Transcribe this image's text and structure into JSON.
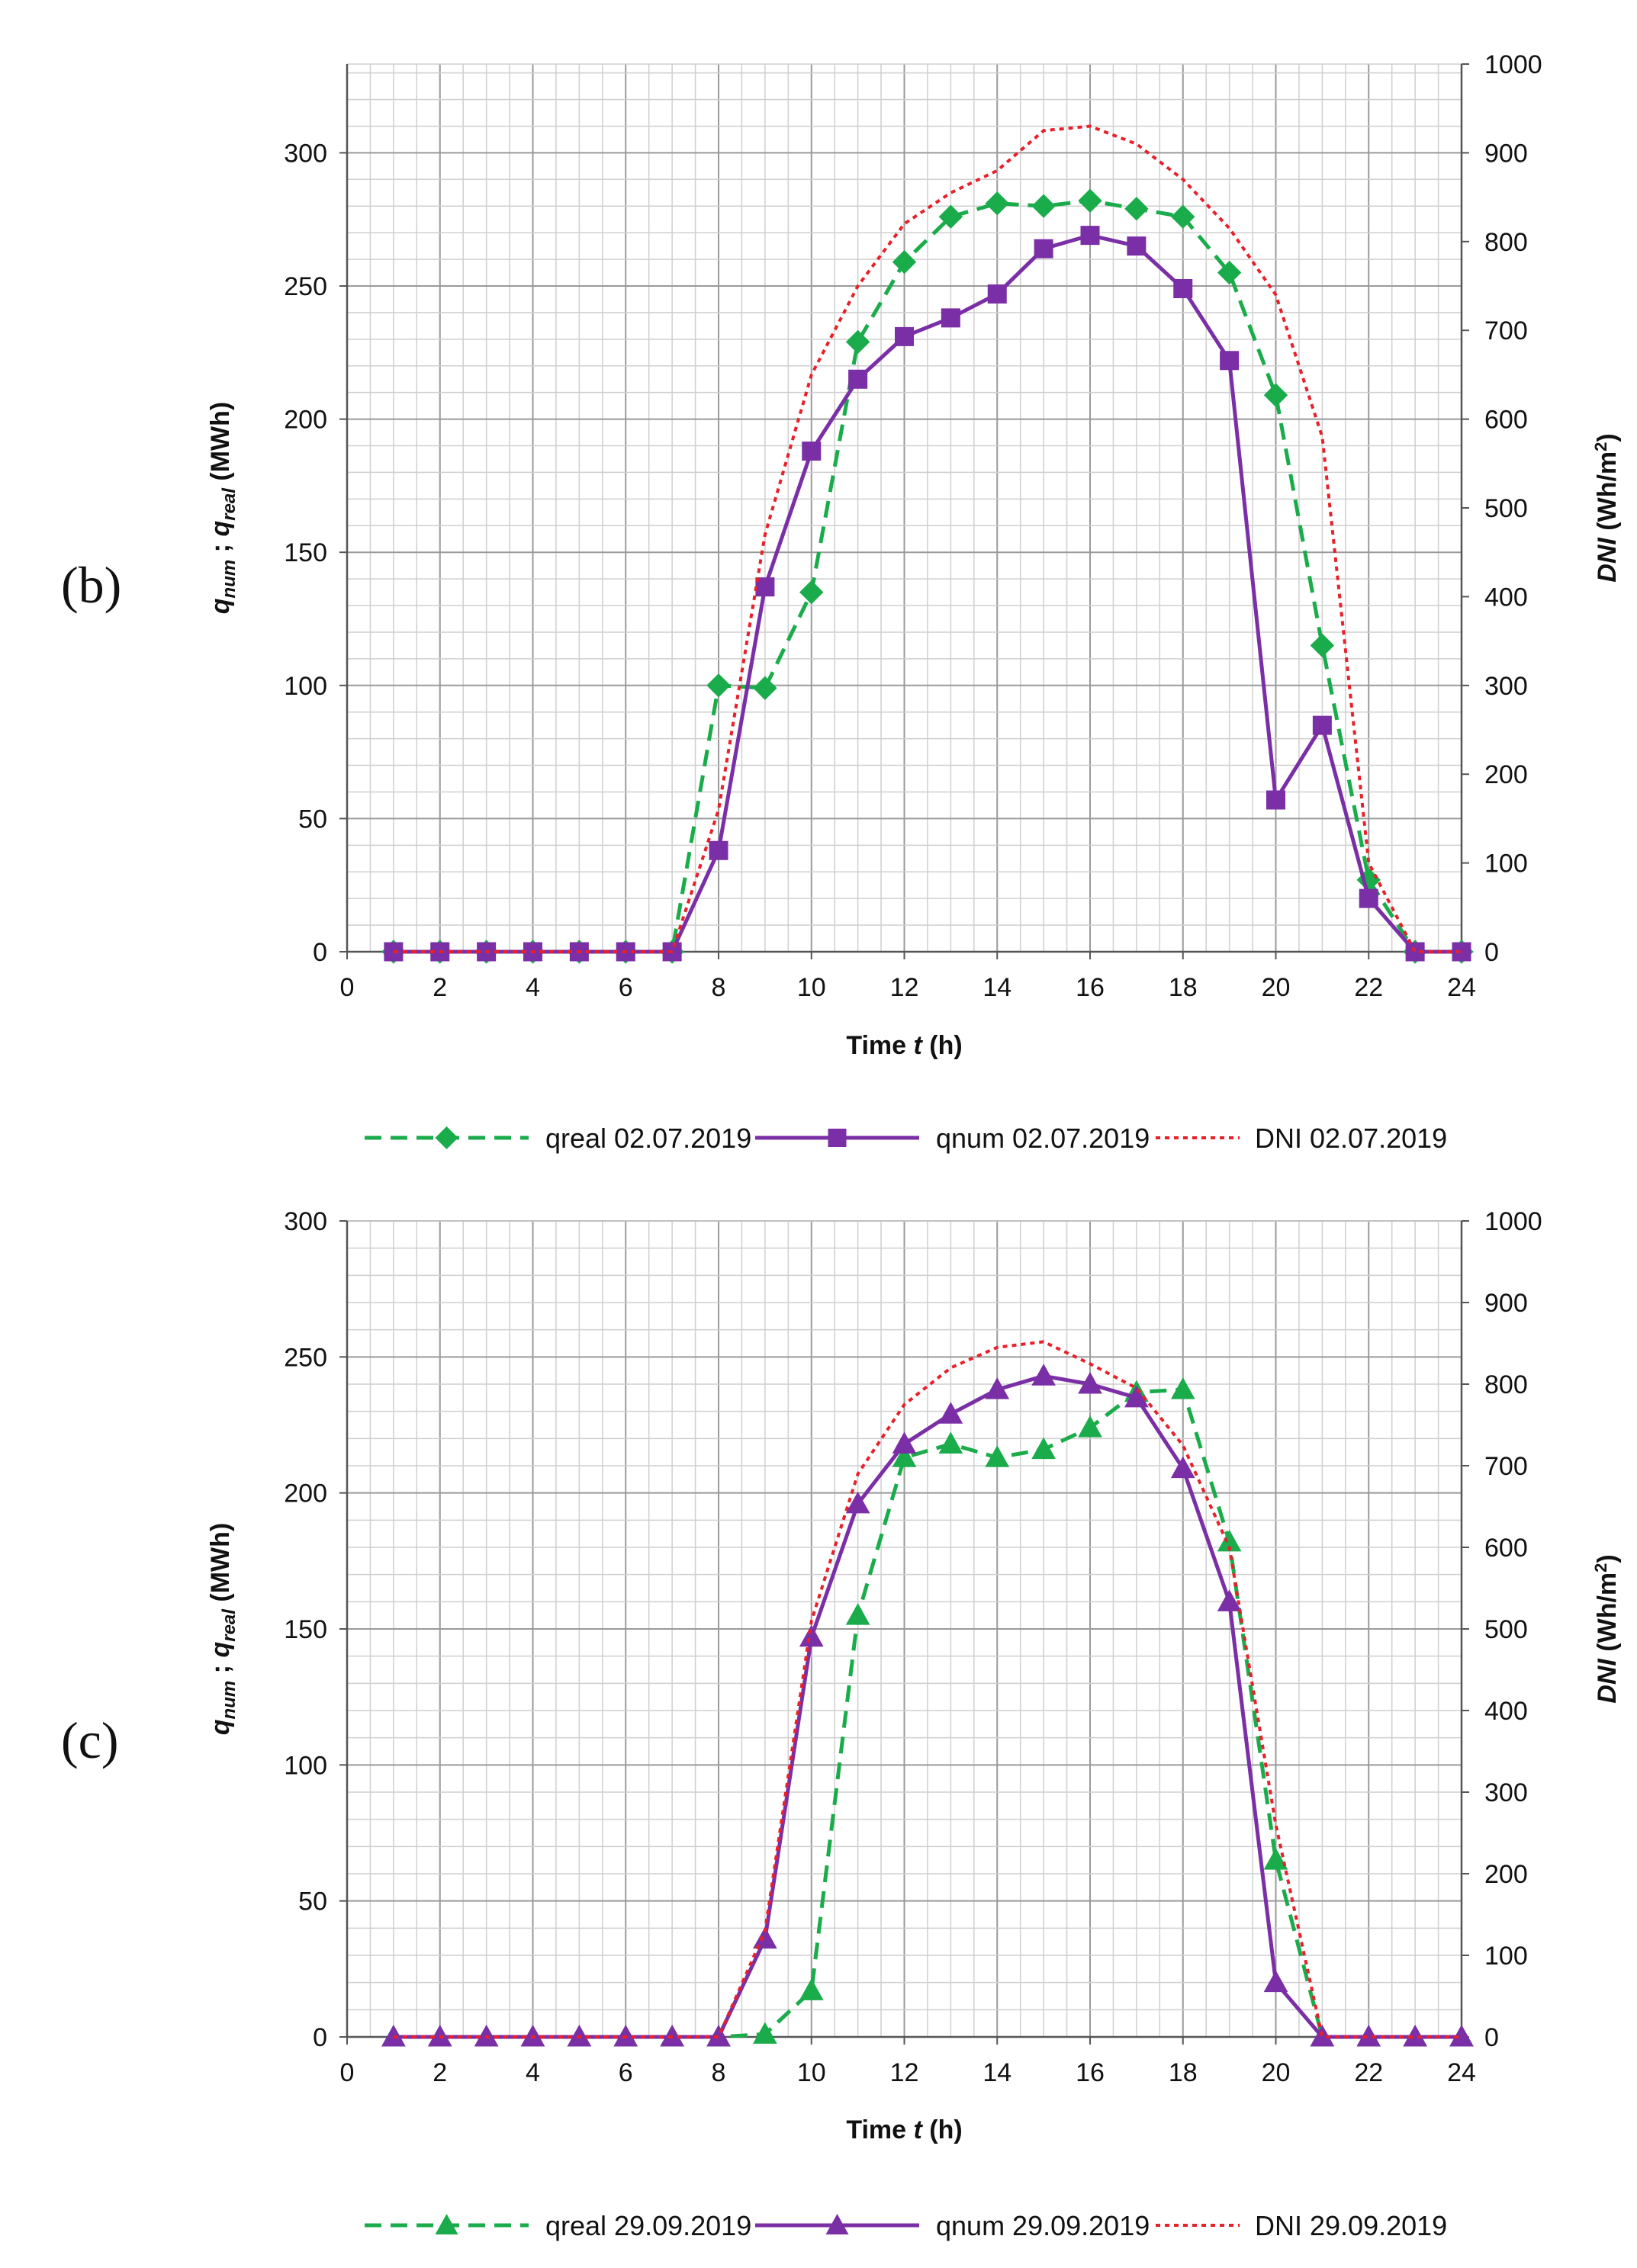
{
  "chart_data": [
    {
      "panel_tag": "(b)",
      "type": "line",
      "xlabel": "Time t (h)",
      "xlabel_parts": [
        "Time ",
        "t",
        " (h)"
      ],
      "ylabel_left_parts": [
        "q",
        "num",
        " ; ",
        "q",
        "real",
        " (MWh)"
      ],
      "ylabel_right_parts": [
        "DNI",
        " (Wh/m",
        "2",
        ")"
      ],
      "xlim": [
        0,
        24
      ],
      "ylim_left": [
        0,
        333.33
      ],
      "ylim_right": [
        0,
        1000
      ],
      "x_ticks": [
        0,
        2,
        4,
        6,
        8,
        10,
        12,
        14,
        16,
        18,
        20,
        22,
        24
      ],
      "x_tick_labels": [
        "0",
        "2",
        "4",
        "6",
        "8",
        "10",
        "12",
        "14",
        "16",
        "18",
        "20",
        "22",
        "24"
      ],
      "y_left_ticks": [
        0,
        50,
        100,
        150,
        200,
        250,
        300
      ],
      "y_left_tick_labels": [
        "0",
        "50",
        "100",
        "150",
        "200",
        "250",
        "300"
      ],
      "y_right_ticks": [
        0,
        100,
        200,
        300,
        400,
        500,
        600,
        700,
        800,
        900,
        1000
      ],
      "y_right_tick_labels": [
        "0",
        "100",
        "200",
        "300",
        "400",
        "500",
        "600",
        "700",
        "800",
        "900",
        "1000"
      ],
      "grid": true,
      "legend_position": "bottom",
      "x": [
        1,
        2,
        3,
        4,
        5,
        6,
        7,
        8,
        9,
        10,
        11,
        12,
        13,
        14,
        15,
        16,
        17,
        18,
        19,
        20,
        21,
        22,
        23,
        24
      ],
      "series": [
        {
          "name": "qreal 02.07.2019",
          "axis": "left",
          "color": "#1aac4b",
          "style": "dashed",
          "marker": "diamond",
          "values": [
            0,
            0,
            0,
            0,
            0,
            0,
            0,
            100,
            99,
            135,
            229,
            259,
            276,
            281,
            280,
            282,
            279,
            276,
            255,
            209,
            115,
            27,
            0,
            0
          ]
        },
        {
          "name": "qnum 02.07.2019",
          "axis": "left",
          "color": "#7b2fa6",
          "style": "solid",
          "marker": "square",
          "values": [
            0,
            0,
            0,
            0,
            0,
            0,
            0,
            38,
            137,
            188,
            215,
            231,
            238,
            247,
            264,
            269,
            265,
            249,
            222,
            57,
            85,
            20,
            0,
            0
          ]
        },
        {
          "name": "DNI 02.07.2019",
          "axis": "right",
          "color": "#e8202a",
          "style": "dotted",
          "marker": "none",
          "values": [
            0,
            0,
            0,
            0,
            0,
            0,
            0,
            160,
            470,
            650,
            750,
            820,
            855,
            880,
            925,
            930,
            910,
            870,
            815,
            740,
            580,
            100,
            0,
            0
          ]
        }
      ]
    },
    {
      "panel_tag": "(c)",
      "type": "line",
      "xlabel": "Time t (h)",
      "xlabel_parts": [
        "Time ",
        "t",
        " (h)"
      ],
      "ylabel_left_parts": [
        "q",
        "num",
        " ; ",
        "q",
        "real",
        " (MWh)"
      ],
      "ylabel_right_parts": [
        "DNI",
        " (Wh/m",
        "2",
        ")"
      ],
      "xlim": [
        0,
        24
      ],
      "ylim_left": [
        0,
        300
      ],
      "ylim_right": [
        0,
        1000
      ],
      "x_ticks": [
        0,
        2,
        4,
        6,
        8,
        10,
        12,
        14,
        16,
        18,
        20,
        22,
        24
      ],
      "x_tick_labels": [
        "0",
        "2",
        "4",
        "6",
        "8",
        "10",
        "12",
        "14",
        "16",
        "18",
        "20",
        "22",
        "24"
      ],
      "y_left_ticks": [
        0,
        50,
        100,
        150,
        200,
        250,
        300
      ],
      "y_left_tick_labels": [
        "0",
        "50",
        "100",
        "150",
        "200",
        "250",
        "300"
      ],
      "y_right_ticks": [
        0,
        100,
        200,
        300,
        400,
        500,
        600,
        700,
        800,
        900,
        1000
      ],
      "y_right_tick_labels": [
        "0",
        "100",
        "200",
        "300",
        "400",
        "500",
        "600",
        "700",
        "800",
        "900",
        "1000"
      ],
      "grid": true,
      "legend_position": "bottom",
      "x": [
        1,
        2,
        3,
        4,
        5,
        6,
        7,
        8,
        9,
        10,
        11,
        12,
        13,
        14,
        15,
        16,
        17,
        18,
        19,
        20,
        21,
        22,
        23,
        24
      ],
      "series": [
        {
          "name": "qreal 29.09.2019",
          "axis": "left",
          "color": "#1aac4b",
          "style": "dashed",
          "marker": "triangle",
          "values": [
            0,
            0,
            0,
            0,
            0,
            0,
            0,
            0,
            1,
            17,
            155,
            213,
            218,
            213,
            216,
            224,
            237,
            238,
            182,
            65,
            0,
            0,
            0,
            0
          ]
        },
        {
          "name": "qnum 29.09.2019",
          "axis": "left",
          "color": "#7b2fa6",
          "style": "solid",
          "marker": "triangle",
          "values": [
            0,
            0,
            0,
            0,
            0,
            0,
            0,
            0,
            36,
            147,
            196,
            218,
            229,
            238,
            243,
            240,
            235,
            209,
            160,
            20,
            0,
            0,
            0,
            0
          ]
        },
        {
          "name": "DNI 29.09.2019",
          "axis": "right",
          "color": "#e8202a",
          "style": "dotted",
          "marker": "none",
          "values": [
            0,
            0,
            0,
            0,
            0,
            0,
            0,
            0,
            130,
            510,
            690,
            775,
            820,
            845,
            852,
            825,
            795,
            725,
            600,
            260,
            0,
            0,
            0,
            0
          ]
        }
      ]
    }
  ]
}
